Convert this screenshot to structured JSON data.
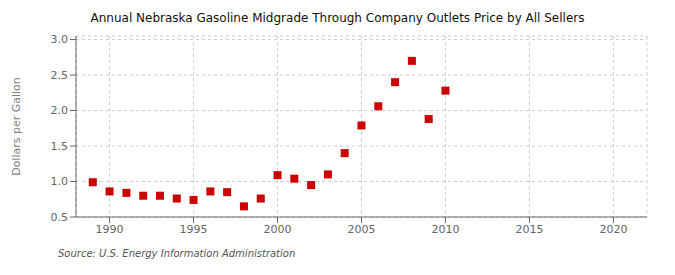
{
  "chart_data": {
    "type": "scatter",
    "title": "Annual Nebraska Gasoline Midgrade Through Company Outlets Price by All Sellers",
    "ylabel": "Dollars per Gallon",
    "annotations": [
      "Source: U.S. Energy Information Administration"
    ],
    "color": "#cc0000",
    "marker": "square",
    "grid": true,
    "xlim": [
      1988,
      2022
    ],
    "ylim": [
      0.5,
      3.05
    ],
    "xticks": [
      1990,
      1995,
      2000,
      2005,
      2010,
      2015,
      2020
    ],
    "yticks": [
      0.5,
      {
        "value": 1,
        "label": "1.0"
      },
      1.5,
      {
        "value": 2,
        "label": "2.0"
      },
      2.5,
      {
        "value": 3,
        "label": "3.0"
      }
    ],
    "x": [
      1989,
      1990,
      1991,
      1992,
      1993,
      1994,
      1995,
      1996,
      1997,
      1998,
      1999,
      2000,
      2001,
      2002,
      2003,
      2004,
      2005,
      2006,
      2007,
      2008,
      2009,
      2010
    ],
    "values": [
      0.99,
      0.86,
      0.84,
      0.8,
      0.8,
      0.76,
      0.74,
      0.86,
      0.85,
      0.65,
      0.76,
      1.09,
      1.04,
      0.95,
      1.1,
      1.4,
      1.79,
      2.06,
      2.4,
      2.7,
      1.88,
      2.28
    ]
  }
}
